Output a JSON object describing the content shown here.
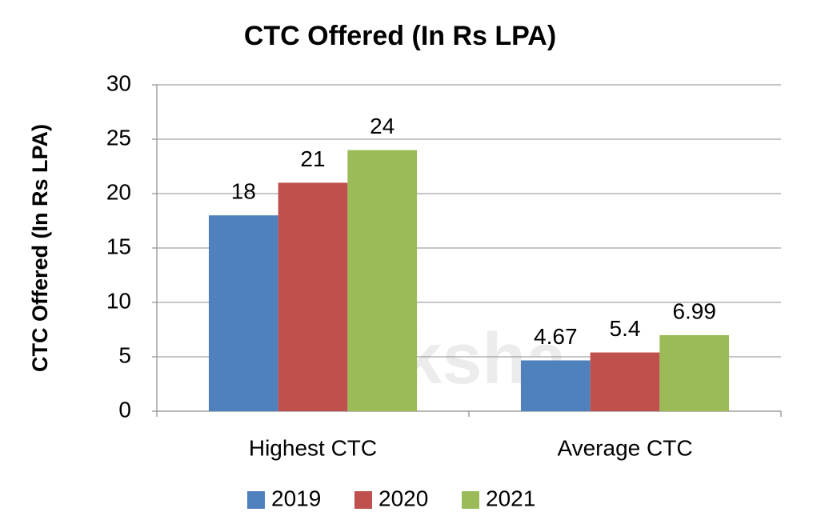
{
  "chart_data": {
    "type": "bar",
    "title": "CTC Offered (In Rs LPA)",
    "y_label": "CTC Offered (In Rs LPA)",
    "watermark": "shiksha",
    "categories": [
      "Highest CTC",
      "Average CTC"
    ],
    "series": [
      {
        "name": "2019",
        "color": "#4f81bd",
        "values": [
          18,
          4.67
        ]
      },
      {
        "name": "2020",
        "color": "#c0504d",
        "values": [
          21,
          5.4
        ]
      },
      {
        "name": "2021",
        "color": "#9bbb59",
        "values": [
          24,
          6.99
        ]
      }
    ],
    "ylim": [
      0,
      30
    ],
    "yticks": [
      0,
      5,
      10,
      15,
      20,
      25,
      30
    ],
    "grid": true,
    "legend": "bottom"
  }
}
